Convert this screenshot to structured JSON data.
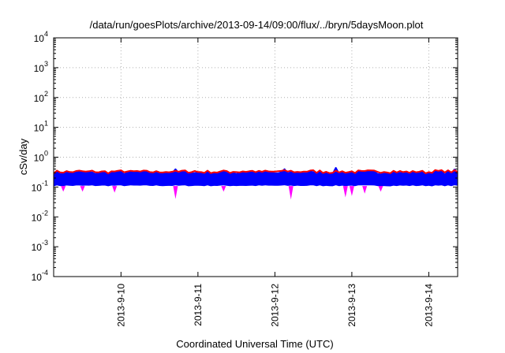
{
  "chart_data": {
    "type": "area",
    "title": "/data/run/goesPlots/archive/2013-09-14/09:00/flux/../bryn/5daysMoon.plot",
    "xlabel": "Coordinated Universal Time (UTC)",
    "ylabel": "cSv/day",
    "yscale": "log",
    "ylim": [
      0.0001,
      10000
    ],
    "xlim": [
      "2013-09-09 03:00",
      "2013-09-14 09:00"
    ],
    "grid": true,
    "y_ticks": [
      {
        "base": "10",
        "exp": "-4",
        "value": 0.0001
      },
      {
        "base": "10",
        "exp": "-3",
        "value": 0.001
      },
      {
        "base": "10",
        "exp": "-2",
        "value": 0.01
      },
      {
        "base": "10",
        "exp": "-1",
        "value": 0.1
      },
      {
        "base": "10",
        "exp": "0",
        "value": 1
      },
      {
        "base": "10",
        "exp": "1",
        "value": 10
      },
      {
        "base": "10",
        "exp": "2",
        "value": 100
      },
      {
        "base": "10",
        "exp": "3",
        "value": 1000
      },
      {
        "base": "10",
        "exp": "4",
        "value": 10000
      }
    ],
    "x_ticks": [
      {
        "label": "2013-9-10",
        "value": "2013-09-10 00:00"
      },
      {
        "label": "2013-9-11",
        "value": "2013-09-11 00:00"
      },
      {
        "label": "2013-9-12",
        "value": "2013-09-12 00:00"
      },
      {
        "label": "2013-9-13",
        "value": "2013-09-13 00:00"
      },
      {
        "label": "2013-9-14",
        "value": "2013-09-14 00:00"
      }
    ],
    "series": [
      {
        "color": "#ff00ff",
        "fill": true,
        "typical_value": 0.12,
        "min_value": 0.035,
        "dips": [
          {
            "time": "2013-09-09 06:00",
            "value": 0.07
          },
          {
            "time": "2013-09-09 12:00",
            "value": 0.07
          },
          {
            "time": "2013-09-09 22:00",
            "value": 0.065
          },
          {
            "time": "2013-09-10 17:00",
            "value": 0.04
          },
          {
            "time": "2013-09-11 08:00",
            "value": 0.07
          },
          {
            "time": "2013-09-12 05:00",
            "value": 0.038
          },
          {
            "time": "2013-09-12 22:00",
            "value": 0.045
          },
          {
            "time": "2013-09-13 00:00",
            "value": 0.05
          },
          {
            "time": "2013-09-13 04:00",
            "value": 0.06
          },
          {
            "time": "2013-09-13 09:00",
            "value": 0.07
          }
        ]
      },
      {
        "color": "#800000",
        "fill": false,
        "typical_value": 0.15
      },
      {
        "color": "#008080",
        "fill": false,
        "typical_value": 0.19
      },
      {
        "color": "#00ffff",
        "fill": false,
        "typical_value": 0.24
      },
      {
        "color": "#0000ff",
        "fill": true,
        "typical_value": 0.3,
        "max_value": 0.45
      },
      {
        "color": "#ff0000",
        "fill": false,
        "typical_value": 0.33
      }
    ]
  }
}
